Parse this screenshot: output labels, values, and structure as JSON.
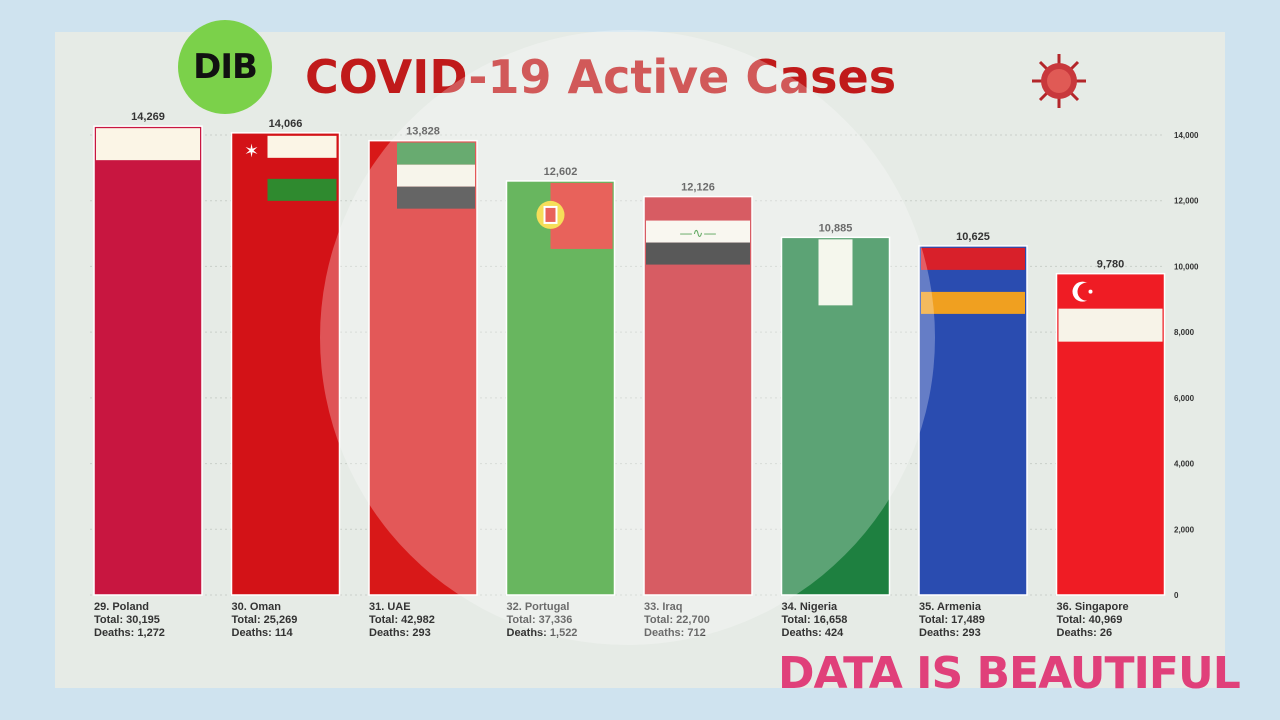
{
  "brand": {
    "logo_text": "DIB",
    "watermark_text": "DATA IS BEAUTIFUL"
  },
  "colors": {
    "title": "#c01a1a",
    "brand_pink": "#e0407a",
    "logo_green": "#7bd14a"
  },
  "chart_data": {
    "type": "bar",
    "title": "COVID-19 Active Cases",
    "ylim": [
      0,
      14500
    ],
    "yticks": [
      0,
      2000,
      4000,
      6000,
      8000,
      10000,
      12000,
      14000
    ],
    "ytick_labels": [
      "0",
      "2,000",
      "4,000",
      "6,000",
      "8,000",
      "10,000",
      "12,000",
      "14,000"
    ],
    "grid": true,
    "categories": [
      "29. Poland",
      "30. Oman",
      "31. UAE",
      "32. Portugal",
      "33. Iraq",
      "34. Nigeria",
      "35. Armenia",
      "36. Singapore"
    ],
    "values": [
      14269,
      14066,
      13828,
      12602,
      12126,
      10885,
      10625,
      9780
    ],
    "value_labels": [
      "14,269",
      "14,066",
      "13,828",
      "12,602",
      "12,126",
      "10,885",
      "10,625",
      "9,780"
    ],
    "totals": [
      "Total: 30,195",
      "Total: 25,269",
      "Total: 42,982",
      "Total: 37,336",
      "Total: 22,700",
      "Total: 16,658",
      "Total: 17,489",
      "Total: 40,969"
    ],
    "deaths": [
      "Deaths: 1,272",
      "Deaths: 114",
      "Deaths: 293",
      "Deaths: 1,522",
      "Deaths: 712",
      "Deaths: 424",
      "Deaths: 293",
      "Deaths: 26"
    ],
    "bar_colors": [
      "#c81640",
      "#d31217",
      "#d81818",
      "#2e9a22",
      "#c81e28",
      "#1e8040",
      "#2a4cb0",
      "#ef1c24"
    ],
    "flags": [
      "poland-flag",
      "oman-flag",
      "uae-flag",
      "portugal-flag",
      "iraq-flag",
      "nigeria-flag",
      "armenia-flag",
      "singapore-flag"
    ]
  }
}
